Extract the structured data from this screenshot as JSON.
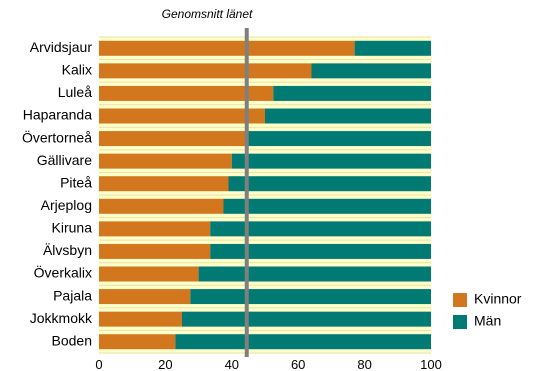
{
  "chart_data": {
    "type": "bar",
    "orientation": "horizontal",
    "stacked": true,
    "percent_scale": true,
    "categories": [
      "Arvidsjaur",
      "Kalix",
      "Luleå",
      "Haparanda",
      "Övertorneå",
      "Gällivare",
      "Piteå",
      "Arjeplog",
      "Kiruna",
      "Älvsbyn",
      "Överkalix",
      "Pajala",
      "Jokkmokk",
      "Boden"
    ],
    "series": [
      {
        "name": "Kvinnor",
        "color": "#D2771E",
        "values": [
          77,
          64,
          52.5,
          50,
          45,
          40,
          39,
          37.5,
          33.5,
          33.5,
          30,
          27.5,
          25,
          23
        ]
      },
      {
        "name": "Män",
        "color": "#007A73",
        "values": [
          23,
          36,
          47.5,
          50,
          55,
          60,
          61,
          62.5,
          66.5,
          66.5,
          70,
          72.5,
          75,
          77
        ]
      }
    ],
    "xlim": [
      0,
      100
    ],
    "x_ticks": [
      0,
      20,
      40,
      60,
      80,
      100
    ],
    "xlabel": "",
    "ylabel": "",
    "reference_line": {
      "value": 44.5,
      "label": "Genomsnitt länet",
      "color": "#7F7F7F"
    },
    "background_color": "#FFFFCC",
    "grid": true,
    "legend_position": "bottom-right"
  }
}
